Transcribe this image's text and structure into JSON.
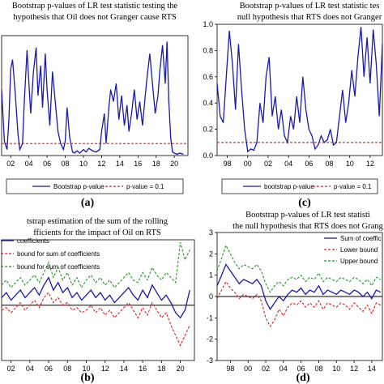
{
  "chart_data": [
    {
      "id": "a",
      "type": "line",
      "title": [
        "Bootstrap p-values of LR test statistic testing the",
        "hypothesis that Oil does not Granger cause RTS"
      ],
      "panel_label": "(a)",
      "x_ticks": [
        "02",
        "04",
        "06",
        "08",
        "10",
        "12",
        "14",
        "16",
        "18",
        "20"
      ],
      "xlim": [
        2001.0,
        2021.5
      ],
      "ylim": [
        0,
        1.0
      ],
      "threshold": 0.1,
      "series": [
        {
          "name": "Bootstrap p-value",
          "style": "solid",
          "color": "#1a1aa6",
          "x": [
            2001.0,
            2001.3,
            2001.6,
            2001.8,
            2002.0,
            2002.2,
            2002.5,
            2002.8,
            2003.0,
            2003.3,
            2003.5,
            2003.8,
            2004.0,
            2004.2,
            2004.5,
            2004.8,
            2005.0,
            2005.3,
            2005.5,
            2005.8,
            2006.0,
            2006.3,
            2006.6,
            2006.9,
            2007.2,
            2007.5,
            2007.8,
            2008.0,
            2008.2,
            2008.5,
            2008.8,
            2009.0,
            2009.3,
            2009.6,
            2010.0,
            2010.3,
            2010.6,
            2011.0,
            2011.4,
            2011.8,
            2012.0,
            2012.3,
            2012.5,
            2012.8,
            2013.0,
            2013.3,
            2013.6,
            2013.9,
            2014.2,
            2014.5,
            2014.8,
            2015.0,
            2015.3,
            2015.6,
            2015.9,
            2016.2,
            2016.5,
            2016.8,
            2017.0,
            2017.3,
            2017.6,
            2017.9,
            2018.2,
            2018.4,
            2018.7,
            2019.0,
            2019.2,
            2019.4,
            2019.6,
            2019.8,
            2020.0,
            2020.3,
            2020.6,
            2021.0
          ],
          "y": [
            0.55,
            0.12,
            0.05,
            0.3,
            0.72,
            0.8,
            0.52,
            0.18,
            0.05,
            0.1,
            0.45,
            0.88,
            0.6,
            0.35,
            0.7,
            0.9,
            0.5,
            0.75,
            0.4,
            0.85,
            0.55,
            0.25,
            0.7,
            0.45,
            0.2,
            0.1,
            0.05,
            0.12,
            0.4,
            0.15,
            0.03,
            0.02,
            0.04,
            0.02,
            0.05,
            0.03,
            0.06,
            0.04,
            0.03,
            0.05,
            0.2,
            0.35,
            0.1,
            0.4,
            0.55,
            0.45,
            0.6,
            0.3,
            0.5,
            0.25,
            0.42,
            0.2,
            0.35,
            0.55,
            0.3,
            0.45,
            0.25,
            0.5,
            0.65,
            0.85,
            0.6,
            0.35,
            0.5,
            0.7,
            0.92,
            0.6,
            0.95,
            0.45,
            0.15,
            0.03,
            0.02,
            0.01,
            0.02,
            0.01
          ]
        },
        {
          "name": "p-value = 0.1",
          "style": "dashed",
          "color": "#e02020"
        }
      ]
    },
    {
      "id": "c",
      "type": "line",
      "title": [
        "Bootstrap p-values of LR test statistic tes",
        "null hypothesis that RTS does not Granger"
      ],
      "panel_label": "(c)",
      "x_ticks": [
        "98",
        "00",
        "02",
        "04",
        "06",
        "08",
        "10",
        "12"
      ],
      "y_ticks": [
        "0.0",
        "0.2",
        "0.4",
        "0.6",
        "0.8",
        "1.0"
      ],
      "xlim": [
        1997.0,
        2013.2
      ],
      "ylim": [
        0,
        1.0
      ],
      "threshold": 0.1,
      "series": [
        {
          "name": "bootstrap p-value",
          "style": "solid",
          "color": "#1a1aa6",
          "x": [
            1997.0,
            1997.3,
            1997.6,
            1997.9,
            1998.2,
            1998.5,
            1998.8,
            1999.1,
            1999.4,
            1999.7,
            2000.0,
            2000.3,
            2000.6,
            2000.9,
            2001.2,
            2001.5,
            2001.8,
            2002.1,
            2002.4,
            2002.7,
            2003.0,
            2003.3,
            2003.6,
            2003.9,
            2004.2,
            2004.5,
            2004.8,
            2005.1,
            2005.4,
            2005.7,
            2006.0,
            2006.3,
            2006.6,
            2006.9,
            2007.2,
            2007.5,
            2007.8,
            2008.1,
            2008.4,
            2008.7,
            2009.0,
            2009.3,
            2009.6,
            2009.9,
            2010.2,
            2010.5,
            2010.8,
            2011.1,
            2011.4,
            2011.7,
            2012.0,
            2012.3,
            2012.6,
            2012.9,
            2013.2
          ],
          "y": [
            0.55,
            0.3,
            0.25,
            0.6,
            0.95,
            0.7,
            0.35,
            0.85,
            0.5,
            0.2,
            0.03,
            0.05,
            0.04,
            0.1,
            0.4,
            0.25,
            0.6,
            0.75,
            0.3,
            0.45,
            0.2,
            0.35,
            0.15,
            0.1,
            0.3,
            0.2,
            0.45,
            0.25,
            0.6,
            0.35,
            0.2,
            0.15,
            0.05,
            0.08,
            0.15,
            0.1,
            0.12,
            0.2,
            0.08,
            0.1,
            0.3,
            0.5,
            0.25,
            0.4,
            0.65,
            0.45,
            0.75,
            0.98,
            0.6,
            0.9,
            0.55,
            0.96,
            0.7,
            0.3,
            0.85
          ]
        },
        {
          "name": "p-value = 0.1",
          "style": "dashed",
          "color": "#e02020"
        }
      ]
    },
    {
      "id": "b",
      "type": "line",
      "title": [
        "tstrap estimation of the sum of the rolling",
        "fficients for the impact of Oil on RTS"
      ],
      "panel_label": "(b)",
      "x_ticks": [
        "02",
        "04",
        "06",
        "08",
        "10",
        "12",
        "14",
        "16",
        "18",
        "20"
      ],
      "xlim": [
        2001.0,
        2021.5
      ],
      "ylim": [
        -2.2,
        2.6
      ],
      "series": [
        {
          "name": "coefficients",
          "style": "solid",
          "color": "#1a1aa6",
          "x": [
            2001.0,
            2001.5,
            2002.0,
            2002.5,
            2003.0,
            2003.5,
            2004.0,
            2004.5,
            2005.0,
            2005.5,
            2006.0,
            2006.5,
            2007.0,
            2007.5,
            2008.0,
            2008.5,
            2009.0,
            2009.5,
            2010.0,
            2010.5,
            2011.0,
            2011.5,
            2012.0,
            2012.5,
            2013.0,
            2013.5,
            2014.0,
            2014.5,
            2015.0,
            2015.5,
            2016.0,
            2016.5,
            2017.0,
            2017.5,
            2018.0,
            2018.5,
            2019.0,
            2019.5,
            2020.0,
            2020.5,
            2021.0
          ],
          "y": [
            0.3,
            0.5,
            0.2,
            0.4,
            0.6,
            0.3,
            0.5,
            0.7,
            0.4,
            0.8,
            1.1,
            0.6,
            0.9,
            0.5,
            0.7,
            0.3,
            0.5,
            0.2,
            0.4,
            0.6,
            0.3,
            0.5,
            0.2,
            0.4,
            0.1,
            0.3,
            0.5,
            0.7,
            0.4,
            0.2,
            0.6,
            0.3,
            0.8,
            0.5,
            0.2,
            0.4,
            0.1,
            -0.3,
            -0.5,
            -0.2,
            0.6
          ]
        },
        {
          "name": "bound for sum of coefficients",
          "style": "dashed",
          "color": "#e02020",
          "x": [
            2001.0,
            2001.5,
            2002.0,
            2002.5,
            2003.0,
            2003.5,
            2004.0,
            2004.5,
            2005.0,
            2005.5,
            2006.0,
            2006.5,
            2007.0,
            2007.5,
            2008.0,
            2008.5,
            2009.0,
            2009.5,
            2010.0,
            2010.5,
            2011.0,
            2011.5,
            2012.0,
            2012.5,
            2013.0,
            2013.5,
            2014.0,
            2014.5,
            2015.0,
            2015.5,
            2016.0,
            2016.5,
            2017.0,
            2017.5,
            2018.0,
            2018.5,
            2019.0,
            2019.5,
            2020.0,
            2020.5,
            2021.0
          ],
          "y": [
            -0.2,
            -0.1,
            -0.3,
            -0.1,
            0.1,
            -0.2,
            0.0,
            0.2,
            -0.1,
            0.3,
            0.5,
            0.1,
            0.3,
            0.0,
            0.1,
            -0.2,
            -0.1,
            -0.3,
            -0.2,
            0.0,
            -0.3,
            -0.1,
            -0.4,
            -0.2,
            -0.5,
            -0.3,
            -0.1,
            0.1,
            -0.2,
            -0.5,
            -0.1,
            -0.4,
            0.1,
            -0.2,
            -0.5,
            -0.3,
            -0.8,
            -1.2,
            -1.6,
            -1.2,
            -0.8
          ]
        },
        {
          "name": "bound for sum of coefficients",
          "style": "dashed",
          "color": "#1f9a1f",
          "x": [
            2001.0,
            2001.5,
            2002.0,
            2002.5,
            2003.0,
            2003.5,
            2004.0,
            2004.5,
            2005.0,
            2005.5,
            2006.0,
            2006.5,
            2007.0,
            2007.5,
            2008.0,
            2008.5,
            2009.0,
            2009.5,
            2010.0,
            2010.5,
            2011.0,
            2011.5,
            2012.0,
            2012.5,
            2013.0,
            2013.5,
            2014.0,
            2014.5,
            2015.0,
            2015.5,
            2016.0,
            2016.5,
            2017.0,
            2017.5,
            2018.0,
            2018.5,
            2019.0,
            2019.5,
            2020.0,
            2020.5,
            2021.0
          ],
          "y": [
            0.8,
            1.0,
            0.7,
            0.9,
            1.1,
            0.8,
            1.0,
            1.2,
            0.9,
            1.3,
            1.7,
            1.1,
            1.5,
            1.0,
            1.3,
            0.8,
            1.1,
            0.7,
            1.0,
            1.2,
            0.9,
            1.1,
            0.8,
            1.0,
            0.7,
            0.9,
            1.1,
            1.3,
            1.0,
            0.9,
            1.3,
            1.0,
            1.5,
            1.2,
            1.0,
            1.3,
            1.1,
            0.9,
            2.5,
            1.8,
            2.2
          ]
        }
      ]
    },
    {
      "id": "d",
      "type": "line",
      "title": [
        "Bootstrap p-values of LR test statisti",
        "the null hypothesis that RTS does not Grang"
      ],
      "panel_label": "(d)",
      "x_ticks": [
        "98",
        "00",
        "02",
        "04",
        "06",
        "08",
        "10",
        "12",
        "14"
      ],
      "y_ticks": [
        "-3",
        "-2",
        "-1",
        "0",
        "1",
        "2",
        "3"
      ],
      "xlim": [
        1996.5,
        2015.2
      ],
      "ylim": [
        -3,
        3
      ],
      "series": [
        {
          "name": "Sum of coeffic",
          "style": "solid",
          "color": "#1a1aa6",
          "x": [
            1996.5,
            1997.0,
            1997.5,
            1998.0,
            1998.5,
            1999.0,
            1999.5,
            2000.0,
            2000.5,
            2001.0,
            2001.5,
            2002.0,
            2002.5,
            2003.0,
            2003.5,
            2004.0,
            2004.5,
            2005.0,
            2005.5,
            2006.0,
            2006.5,
            2007.0,
            2007.5,
            2008.0,
            2008.5,
            2009.0,
            2009.5,
            2010.0,
            2010.5,
            2011.0,
            2011.5,
            2012.0,
            2012.5,
            2013.0,
            2013.5,
            2014.0,
            2014.5,
            2015.0
          ],
          "y": [
            0.5,
            1.0,
            1.5,
            1.2,
            0.9,
            0.6,
            0.8,
            0.7,
            0.6,
            0.8,
            0.5,
            -0.2,
            -0.6,
            -0.3,
            0.0,
            -0.2,
            0.1,
            0.3,
            0.2,
            0.4,
            0.1,
            0.3,
            0.2,
            0.5,
            0.1,
            0.3,
            0.2,
            0.1,
            0.3,
            0.2,
            0.1,
            0.3,
            0.2,
            0.0,
            0.2,
            -0.1,
            0.3,
            0.2
          ]
        },
        {
          "name": "Lower bound",
          "style": "dashed",
          "color": "#e02020",
          "x": [
            1996.5,
            1997.0,
            1997.5,
            1998.0,
            1998.5,
            1999.0,
            1999.5,
            2000.0,
            2000.5,
            2001.0,
            2001.5,
            2002.0,
            2002.5,
            2003.0,
            2003.5,
            2004.0,
            2004.5,
            2005.0,
            2005.5,
            2006.0,
            2006.5,
            2007.0,
            2007.5,
            2008.0,
            2008.5,
            2009.0,
            2009.5,
            2010.0,
            2010.5,
            2011.0,
            2011.5,
            2012.0,
            2012.5,
            2013.0,
            2013.5,
            2014.0,
            2014.5,
            2015.0
          ],
          "y": [
            -0.1,
            0.3,
            0.7,
            0.4,
            0.2,
            -0.1,
            0.1,
            0.0,
            -0.1,
            0.1,
            -0.2,
            -1.0,
            -1.4,
            -1.1,
            -0.6,
            -0.9,
            -0.5,
            -0.3,
            -0.4,
            -0.2,
            -0.5,
            -0.3,
            -0.5,
            -0.2,
            -0.6,
            -0.3,
            -0.4,
            -0.5,
            -0.3,
            -0.4,
            -0.6,
            -0.3,
            -0.5,
            -0.7,
            -0.4,
            -0.8,
            -0.3,
            -0.4
          ]
        },
        {
          "name": "Upper bound",
          "style": "dashed",
          "color": "#1f9a1f",
          "x": [
            1996.5,
            1997.0,
            1997.5,
            1998.0,
            1998.5,
            1999.0,
            1999.5,
            2000.0,
            2000.5,
            2001.0,
            2001.5,
            2002.0,
            2002.5,
            2003.0,
            2003.5,
            2004.0,
            2004.5,
            2005.0,
            2005.5,
            2006.0,
            2006.5,
            2007.0,
            2007.5,
            2008.0,
            2008.5,
            2009.0,
            2009.5,
            2010.0,
            2010.5,
            2011.0,
            2011.5,
            2012.0,
            2012.5,
            2013.0,
            2013.5,
            2014.0,
            2014.5,
            2015.0
          ],
          "y": [
            1.2,
            1.8,
            2.4,
            2.0,
            1.6,
            1.3,
            1.5,
            1.4,
            1.3,
            1.5,
            1.2,
            0.6,
            0.2,
            0.5,
            0.7,
            0.5,
            0.8,
            0.9,
            0.8,
            1.0,
            0.7,
            0.9,
            0.8,
            1.1,
            0.7,
            0.9,
            0.8,
            0.7,
            0.9,
            0.8,
            0.7,
            0.9,
            0.8,
            0.6,
            0.8,
            0.5,
            0.9,
            0.8
          ]
        }
      ]
    }
  ]
}
